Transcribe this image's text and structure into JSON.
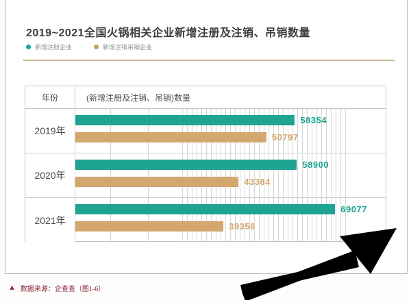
{
  "page": {
    "title": "2019~2021全国火锅相关企业新增注册及注销、吊销数量",
    "source_marker": "▲",
    "source_note": "数据来源：企查查（图1-6）"
  },
  "legend": [
    {
      "label": "新增注册企业",
      "color": "#1fa392"
    },
    {
      "label": "新增注销吊销企业",
      "color": "#c2a05a"
    }
  ],
  "table": {
    "col_year_header": "年份",
    "col_value_header": "(新增注册及注销、吊销)数量"
  },
  "chart_data": {
    "type": "bar",
    "orientation": "horizontal",
    "title": "2019~2021全国火锅相关企业新增注册及注销、吊销数量",
    "categories": [
      "2019年",
      "2020年",
      "2021年"
    ],
    "series": [
      {
        "name": "新增注册企业",
        "color": "#1fa392",
        "values": [
          58354,
          58900,
          69077
        ]
      },
      {
        "name": "新增注销吊销企业",
        "color": "#d4a76f",
        "values": [
          50797,
          43384,
          39356
        ]
      }
    ],
    "xlim": [
      0,
      82500
    ],
    "grid": true,
    "legend_position": "top-left"
  },
  "colors": {
    "registered_bar": "#1fa392",
    "deregistered_bar": "#d4a76f",
    "separator_line": "#c6b893",
    "source_text": "#8b2332",
    "table_border": "#c2c2c2",
    "annotation_arrow": "#000000"
  },
  "annotation": {
    "arrow": "large-black-arrow-pointing-up-right"
  }
}
